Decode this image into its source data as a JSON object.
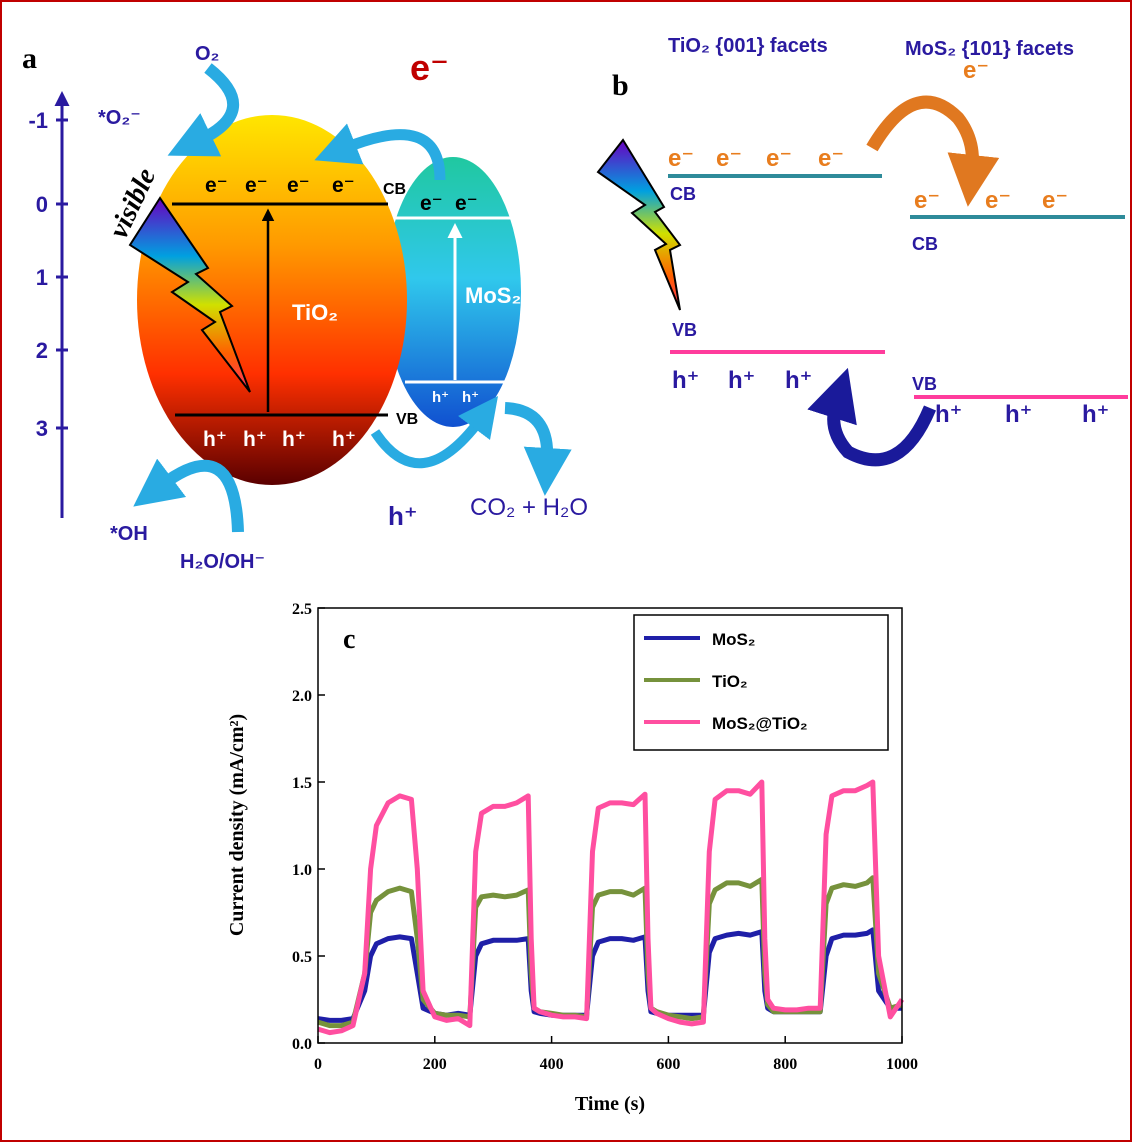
{
  "panel_a": {
    "label": "a",
    "energy_ticks": [
      "-1",
      "0",
      "1",
      "2",
      "3"
    ],
    "texts": {
      "o2": "O₂",
      "o2_radical": "*O₂⁻",
      "electron_red": "e⁻",
      "visible": "visible",
      "cb_e1": "e⁻",
      "cb_e2": "e⁻",
      "cb_e3": "e⁻",
      "cb_e4": "e⁻",
      "cb": "CB",
      "mos2_e1": "e⁻",
      "mos2_e2": "e⁻",
      "tio2": "TiO₂",
      "mos2": "MoS₂",
      "mos2_h1": "h⁺",
      "mos2_h2": "h⁺",
      "vb": "VB",
      "vb_h1": "h⁺",
      "vb_h2": "h⁺",
      "vb_h3": "h⁺",
      "vb_h4": "h⁺",
      "hole_blue": "h⁺",
      "co2_h2o": "CO₂ + H₂O",
      "oh_radical": "*OH",
      "h2o_oh": "H₂O/OH⁻"
    }
  },
  "panel_b": {
    "label": "b",
    "tio2_title": "TiO₂  {001} facets",
    "mos2_title": "MoS₂ {101} facets",
    "transfer_e": "e⁻",
    "tio2_cb_e": [
      "e⁻",
      "e⁻",
      "e⁻",
      "e⁻"
    ],
    "tio2_cb": "CB",
    "tio2_vb": "VB",
    "tio2_vb_h": [
      "h⁺",
      "h⁺",
      "h⁺"
    ],
    "mos2_cb_e": [
      "e⁻",
      "e⁻",
      "e⁻"
    ],
    "mos2_cb": "CB",
    "mos2_vb": "VB",
    "mos2_vb_h": [
      "h⁺",
      "h⁺",
      "h⁺"
    ]
  },
  "chart_data": {
    "type": "line",
    "panel_label": "c",
    "xlabel": "Time (s)",
    "ylabel": "Current density (mA/cm²)",
    "xlim": [
      0,
      1000
    ],
    "ylim": [
      0,
      2.5
    ],
    "xticks": [
      0,
      200,
      400,
      600,
      800,
      1000
    ],
    "yticks": [
      {
        "value": 0,
        "label": "0.0"
      },
      0.5,
      {
        "value": 1,
        "label": "1.0"
      },
      1.5,
      {
        "value": 2,
        "label": "2.0"
      },
      2.5
    ],
    "legend": "upper right",
    "x": [
      0,
      20,
      40,
      60,
      80,
      90,
      100,
      120,
      140,
      160,
      170,
      180,
      200,
      220,
      240,
      260,
      270,
      280,
      300,
      320,
      340,
      360,
      365,
      370,
      380,
      400,
      420,
      440,
      460,
      470,
      480,
      500,
      520,
      540,
      560,
      565,
      570,
      580,
      600,
      620,
      640,
      660,
      670,
      680,
      700,
      720,
      740,
      760,
      765,
      770,
      780,
      800,
      820,
      840,
      860,
      870,
      880,
      900,
      920,
      940,
      950,
      960,
      980,
      1000
    ],
    "series": [
      {
        "name": "MoS₂",
        "color": "#1f1fa8",
        "values": [
          0.14,
          0.13,
          0.13,
          0.14,
          0.3,
          0.5,
          0.57,
          0.6,
          0.61,
          0.6,
          0.4,
          0.2,
          0.17,
          0.16,
          0.17,
          0.16,
          0.5,
          0.57,
          0.59,
          0.59,
          0.59,
          0.6,
          0.3,
          0.18,
          0.17,
          0.16,
          0.16,
          0.16,
          0.16,
          0.5,
          0.58,
          0.6,
          0.6,
          0.59,
          0.61,
          0.3,
          0.18,
          0.17,
          0.16,
          0.16,
          0.16,
          0.16,
          0.52,
          0.6,
          0.62,
          0.63,
          0.62,
          0.64,
          0.3,
          0.2,
          0.18,
          0.18,
          0.18,
          0.18,
          0.18,
          0.5,
          0.6,
          0.62,
          0.62,
          0.63,
          0.65,
          0.3,
          0.2,
          0.2
        ]
      },
      {
        "name": "TiO₂",
        "color": "#76923c",
        "values": [
          0.12,
          0.1,
          0.1,
          0.12,
          0.4,
          0.75,
          0.82,
          0.87,
          0.89,
          0.87,
          0.6,
          0.25,
          0.17,
          0.16,
          0.16,
          0.15,
          0.78,
          0.84,
          0.85,
          0.84,
          0.85,
          0.88,
          0.4,
          0.2,
          0.18,
          0.17,
          0.16,
          0.16,
          0.15,
          0.78,
          0.85,
          0.87,
          0.87,
          0.85,
          0.89,
          0.4,
          0.2,
          0.18,
          0.16,
          0.15,
          0.14,
          0.15,
          0.8,
          0.88,
          0.92,
          0.92,
          0.9,
          0.94,
          0.4,
          0.22,
          0.18,
          0.18,
          0.18,
          0.18,
          0.18,
          0.8,
          0.89,
          0.91,
          0.9,
          0.92,
          0.95,
          0.4,
          0.2,
          0.22
        ]
      },
      {
        "name": "MoS₂@TiO₂",
        "color": "#ff4fa0",
        "values": [
          0.08,
          0.06,
          0.07,
          0.1,
          0.4,
          1.0,
          1.25,
          1.38,
          1.42,
          1.4,
          1.0,
          0.3,
          0.15,
          0.13,
          0.14,
          0.1,
          1.1,
          1.32,
          1.36,
          1.36,
          1.38,
          1.42,
          0.6,
          0.2,
          0.18,
          0.16,
          0.15,
          0.15,
          0.14,
          1.1,
          1.35,
          1.38,
          1.38,
          1.37,
          1.43,
          0.6,
          0.2,
          0.17,
          0.14,
          0.12,
          0.11,
          0.12,
          1.1,
          1.4,
          1.45,
          1.45,
          1.43,
          1.5,
          0.6,
          0.25,
          0.2,
          0.19,
          0.19,
          0.2,
          0.2,
          1.2,
          1.42,
          1.45,
          1.45,
          1.48,
          1.5,
          0.5,
          0.15,
          0.25
        ]
      }
    ]
  }
}
